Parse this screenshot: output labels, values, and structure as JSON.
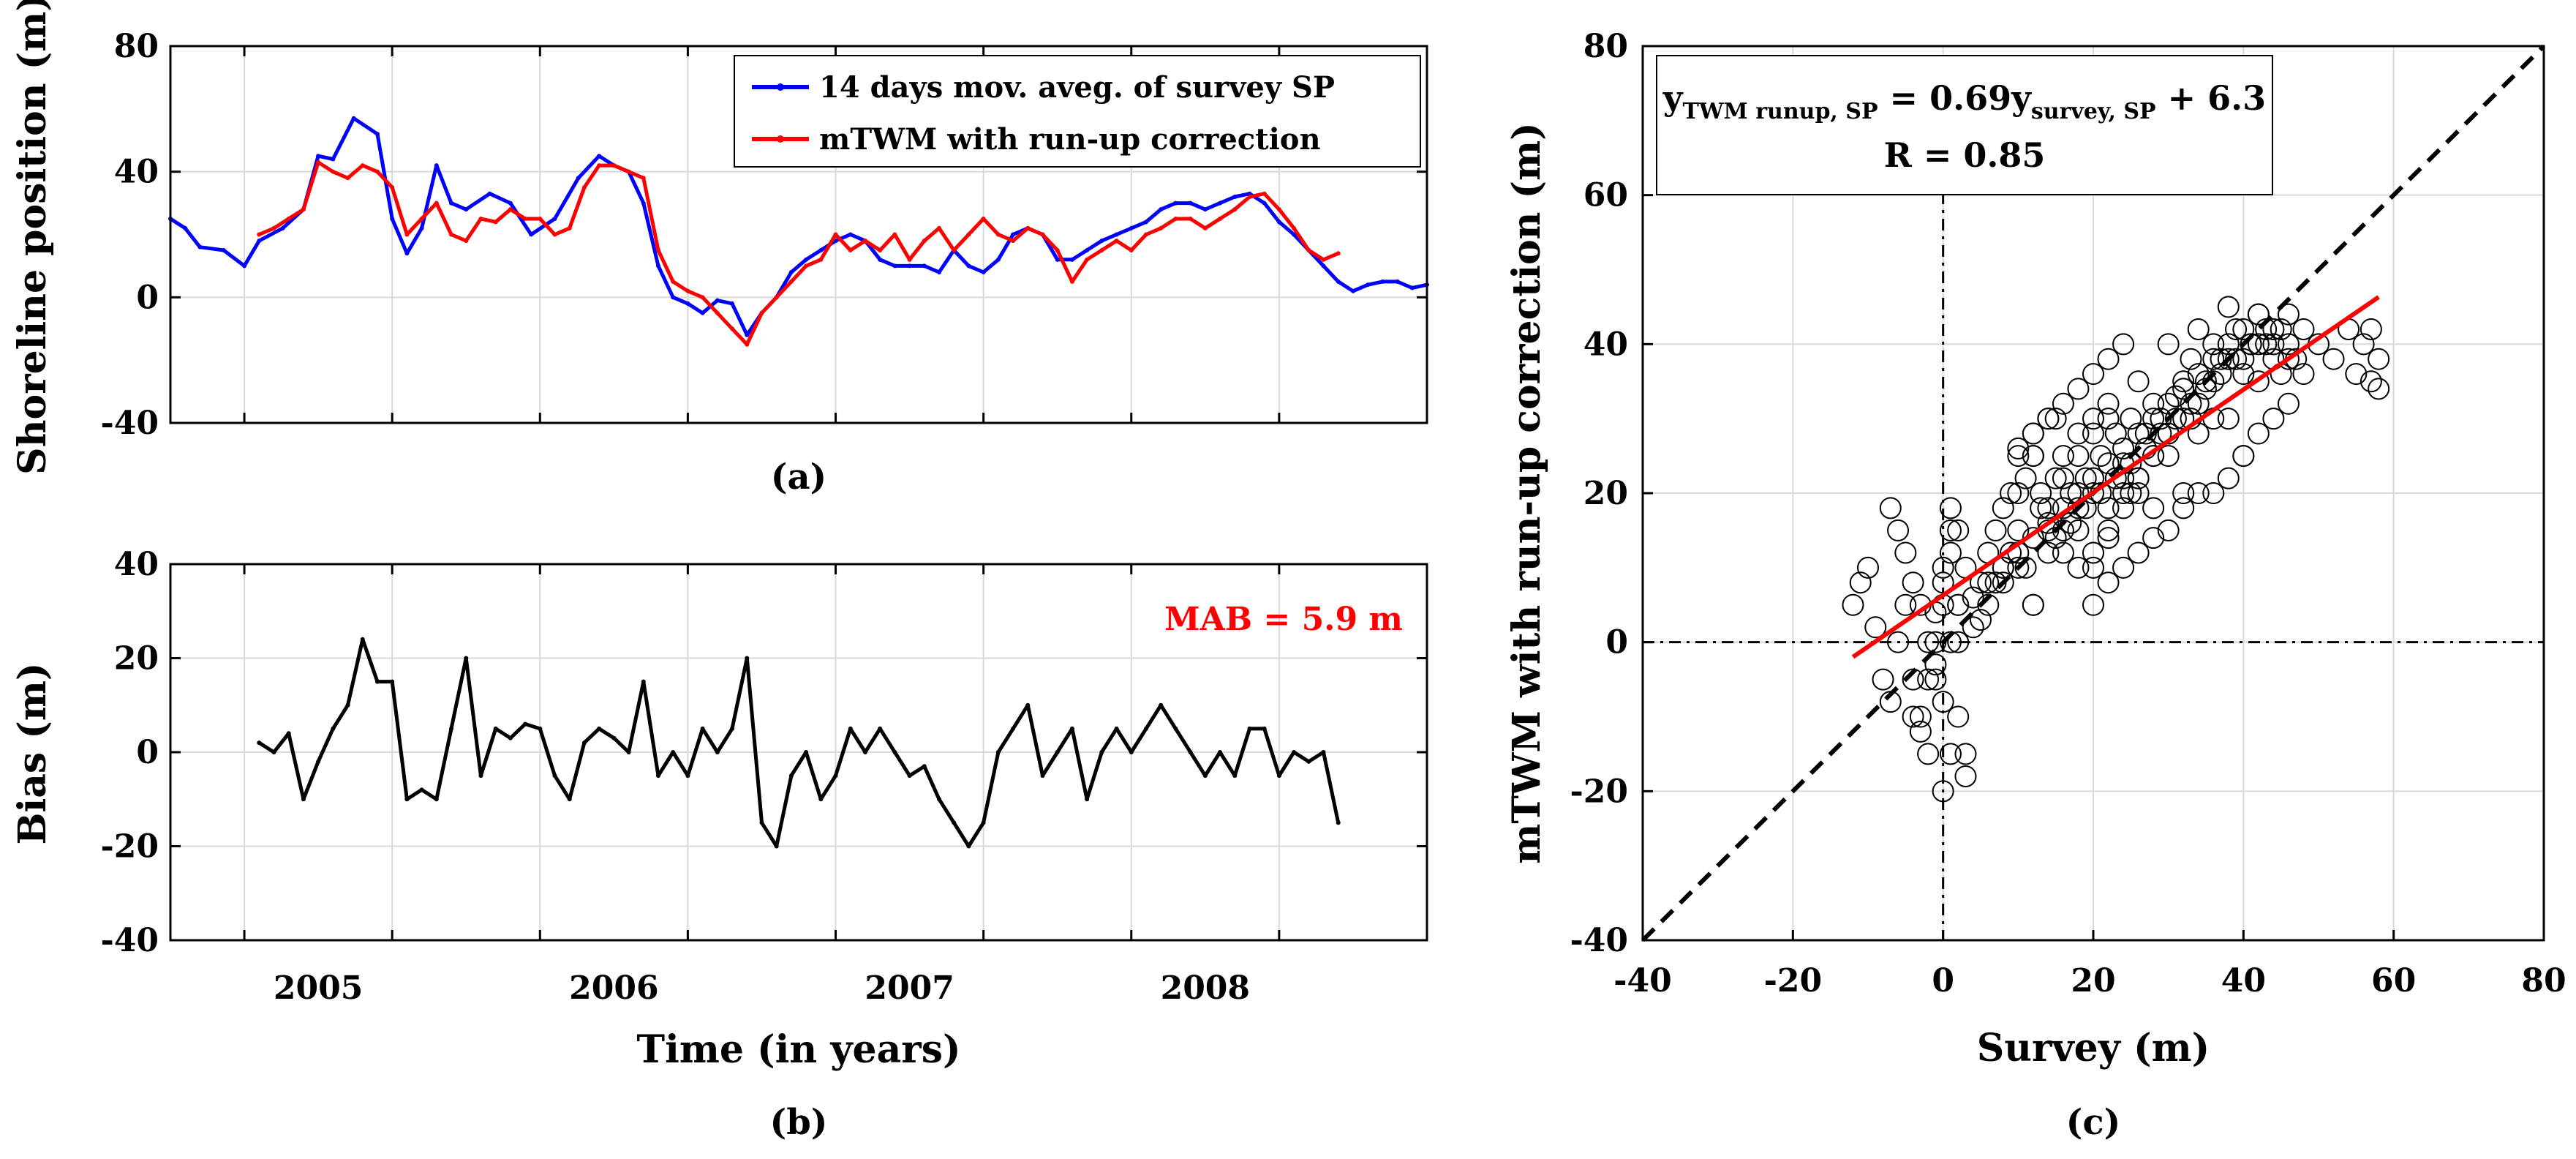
{
  "chart_data": [
    {
      "id": "a",
      "type": "line",
      "panel_label": "(a)",
      "ylabel": "Shoreline position (m)",
      "xlabel": "",
      "xlim": [
        2004.5,
        2008.75
      ],
      "ylim": [
        -40,
        80
      ],
      "yticks": [
        -40,
        0,
        40,
        80
      ],
      "xticks": [
        2005,
        2006,
        2007,
        2008
      ],
      "xgrid": [
        2004.75,
        2005.25,
        2005.75,
        2006.25,
        2006.75,
        2007.25,
        2007.75,
        2008.25
      ],
      "grid": true,
      "legend": {
        "position": "top-right",
        "entries": [
          "14 days mov. aveg. of survey SP",
          "mTWM with run-up correction"
        ]
      },
      "series": [
        {
          "name": "14 days mov. aveg. of survey SP",
          "color": "#0000ff",
          "x": [
            2004.5,
            2004.55,
            2004.6,
            2004.68,
            2004.75,
            2004.8,
            2004.88,
            2004.95,
            2005.0,
            2005.05,
            2005.12,
            2005.2,
            2005.25,
            2005.3,
            2005.35,
            2005.4,
            2005.45,
            2005.5,
            2005.58,
            2005.65,
            2005.72,
            2005.8,
            2005.88,
            2005.95,
            2006.0,
            2006.05,
            2006.1,
            2006.15,
            2006.2,
            2006.25,
            2006.3,
            2006.35,
            2006.4,
            2006.45,
            2006.5,
            2006.55,
            2006.6,
            2006.65,
            2006.7,
            2006.75,
            2006.8,
            2006.85,
            2006.9,
            2006.95,
            2007.0,
            2007.05,
            2007.1,
            2007.15,
            2007.2,
            2007.25,
            2007.3,
            2007.35,
            2007.4,
            2007.45,
            2007.5,
            2007.55,
            2007.6,
            2007.65,
            2007.7,
            2007.75,
            2007.8,
            2007.85,
            2007.9,
            2007.95,
            2008.0,
            2008.05,
            2008.1,
            2008.15,
            2008.2,
            2008.25,
            2008.3,
            2008.35,
            2008.4,
            2008.45,
            2008.5,
            2008.55,
            2008.6,
            2008.65,
            2008.7,
            2008.75
          ],
          "y": [
            25,
            22,
            16,
            15,
            10,
            18,
            22,
            28,
            45,
            44,
            57,
            52,
            25,
            14,
            22,
            42,
            30,
            28,
            33,
            30,
            20,
            25,
            38,
            45,
            42,
            40,
            30,
            10,
            0,
            -2,
            -5,
            -1,
            -2,
            -12,
            -5,
            0,
            8,
            12,
            15,
            18,
            20,
            18,
            12,
            10,
            10,
            10,
            8,
            15,
            10,
            8,
            12,
            20,
            22,
            20,
            12,
            12,
            15,
            18,
            20,
            22,
            24,
            28,
            30,
            30,
            28,
            30,
            32,
            33,
            30,
            24,
            20,
            15,
            10,
            5,
            2,
            4,
            5,
            5,
            3,
            4
          ]
        },
        {
          "name": "mTWM with run-up correction",
          "color": "#ff0000",
          "x": [
            2004.8,
            2004.85,
            2004.9,
            2004.95,
            2005.0,
            2005.05,
            2005.1,
            2005.15,
            2005.2,
            2005.25,
            2005.3,
            2005.35,
            2005.4,
            2005.45,
            2005.5,
            2005.55,
            2005.6,
            2005.65,
            2005.7,
            2005.75,
            2005.8,
            2005.85,
            2005.9,
            2005.95,
            2006.0,
            2006.05,
            2006.1,
            2006.15,
            2006.2,
            2006.25,
            2006.3,
            2006.35,
            2006.4,
            2006.45,
            2006.5,
            2006.55,
            2006.6,
            2006.65,
            2006.7,
            2006.75,
            2006.8,
            2006.85,
            2006.9,
            2006.95,
            2007.0,
            2007.05,
            2007.1,
            2007.15,
            2007.2,
            2007.25,
            2007.3,
            2007.35,
            2007.4,
            2007.45,
            2007.5,
            2007.55,
            2007.6,
            2007.65,
            2007.7,
            2007.75,
            2007.8,
            2007.85,
            2007.9,
            2007.95,
            2008.0,
            2008.05,
            2008.1,
            2008.15,
            2008.2,
            2008.25,
            2008.3,
            2008.35,
            2008.4,
            2008.45
          ],
          "y": [
            20,
            22,
            25,
            28,
            43,
            40,
            38,
            42,
            40,
            35,
            20,
            25,
            30,
            20,
            18,
            25,
            24,
            28,
            25,
            25,
            20,
            22,
            35,
            42,
            42,
            40,
            38,
            15,
            5,
            2,
            0,
            -5,
            -10,
            -15,
            -5,
            0,
            5,
            10,
            12,
            20,
            15,
            18,
            15,
            20,
            12,
            18,
            22,
            15,
            20,
            25,
            20,
            18,
            22,
            20,
            15,
            5,
            12,
            15,
            18,
            15,
            20,
            22,
            25,
            25,
            22,
            25,
            28,
            32,
            33,
            28,
            22,
            15,
            12,
            14
          ]
        }
      ]
    },
    {
      "id": "b",
      "type": "line",
      "panel_label": "(b)",
      "ylabel": "Bias (m)",
      "xlabel": "Time (in years)",
      "xlim": [
        2004.5,
        2008.75
      ],
      "ylim": [
        -40,
        40
      ],
      "yticks": [
        -40,
        -20,
        0,
        20,
        40
      ],
      "xticks": [
        2005,
        2006,
        2007,
        2008
      ],
      "xticklabels": [
        "2005",
        "2006",
        "2007",
        "2008"
      ],
      "xgrid": [
        2004.75,
        2005.25,
        2005.75,
        2006.25,
        2006.75,
        2007.25,
        2007.75,
        2008.25
      ],
      "grid": true,
      "annotation": {
        "text": "MAB = 5.9 m",
        "color": "#ff0000",
        "position": "top-right"
      },
      "series": [
        {
          "name": "Bias",
          "color": "#000000",
          "x": [
            2004.8,
            2004.85,
            2004.9,
            2004.95,
            2005.0,
            2005.05,
            2005.1,
            2005.15,
            2005.2,
            2005.25,
            2005.3,
            2005.35,
            2005.4,
            2005.45,
            2005.5,
            2005.55,
            2005.6,
            2005.65,
            2005.7,
            2005.75,
            2005.8,
            2005.85,
            2005.9,
            2005.95,
            2006.0,
            2006.05,
            2006.1,
            2006.15,
            2006.2,
            2006.25,
            2006.3,
            2006.35,
            2006.4,
            2006.45,
            2006.5,
            2006.55,
            2006.6,
            2006.65,
            2006.7,
            2006.75,
            2006.8,
            2006.85,
            2006.9,
            2006.95,
            2007.0,
            2007.05,
            2007.1,
            2007.15,
            2007.2,
            2007.25,
            2007.3,
            2007.35,
            2007.4,
            2007.45,
            2007.5,
            2007.55,
            2007.6,
            2007.65,
            2007.7,
            2007.75,
            2007.8,
            2007.85,
            2007.9,
            2007.95,
            2008.0,
            2008.05,
            2008.1,
            2008.15,
            2008.2,
            2008.25,
            2008.3,
            2008.35,
            2008.4,
            2008.45
          ],
          "y": [
            2,
            0,
            4,
            -10,
            -2,
            5,
            10,
            24,
            15,
            15,
            -10,
            -8,
            -10,
            5,
            20,
            -5,
            5,
            3,
            6,
            5,
            -5,
            -10,
            2,
            5,
            3,
            0,
            15,
            -5,
            0,
            -5,
            5,
            0,
            5,
            20,
            -15,
            -20,
            -5,
            0,
            -10,
            -5,
            5,
            0,
            5,
            0,
            -5,
            -3,
            -10,
            -15,
            -20,
            -15,
            0,
            5,
            10,
            -5,
            0,
            5,
            -10,
            0,
            5,
            0,
            5,
            10,
            5,
            0,
            -5,
            0,
            -5,
            5,
            5,
            -5,
            0,
            -2,
            0,
            -15
          ]
        }
      ]
    },
    {
      "id": "c",
      "type": "scatter",
      "panel_label": "(c)",
      "xlabel": "Survey (m)",
      "ylabel": "mTWM with run-up correction (m)",
      "xlim": [
        -40,
        80
      ],
      "ylim": [
        -40,
        80
      ],
      "xticks": [
        -40,
        -20,
        0,
        20,
        40,
        60,
        80
      ],
      "yticks": [
        -40,
        -20,
        0,
        20,
        40,
        60,
        80
      ],
      "grid": true,
      "equation": {
        "lhs": "y",
        "lhs_sub": "TWM runup, SP",
        "eq": " = 0.69",
        "rhs": "y",
        "rhs_sub": "survey, SP",
        "const": " + 6.3",
        "r_text": "R = 0.85"
      },
      "fit": {
        "slope": 0.69,
        "intercept": 6.3,
        "x_range": [
          -12,
          58
        ],
        "color": "#ff0000"
      },
      "one_to_one": {
        "x_range": [
          -40,
          80
        ],
        "color": "#000000",
        "style": "dashed"
      },
      "points": {
        "x": [
          -12,
          -11,
          -10,
          -9,
          -8,
          -7,
          -6,
          -5,
          -4,
          -3,
          -2,
          -1,
          0,
          0,
          1,
          1,
          2,
          2,
          3,
          3,
          -2,
          -3,
          -4,
          -1,
          0,
          1,
          2,
          4,
          5,
          6,
          7,
          8,
          9,
          10,
          11,
          12,
          12,
          13,
          14,
          15,
          15,
          16,
          17,
          18,
          18,
          19,
          20,
          20,
          21,
          22,
          22,
          23,
          24,
          25,
          25,
          26,
          27,
          28,
          28,
          29,
          30,
          30,
          31,
          32,
          33,
          33,
          34,
          35,
          36,
          37,
          38,
          38,
          39,
          40,
          40,
          41,
          42,
          42,
          43,
          44,
          45,
          45,
          46,
          47,
          48,
          50,
          52,
          54,
          56,
          57,
          58,
          58,
          57,
          55,
          8,
          10,
          12,
          14,
          16,
          18,
          20,
          22,
          24,
          26,
          28,
          30,
          32,
          34,
          36,
          10,
          12,
          14,
          16,
          18,
          20,
          22,
          24,
          26,
          15,
          17,
          19,
          21,
          23,
          25,
          27,
          29,
          31,
          33,
          35,
          37,
          39,
          41,
          43,
          5,
          6,
          7,
          8,
          9,
          10,
          11,
          12,
          13,
          14,
          16,
          18,
          20,
          22,
          24,
          26,
          28,
          30,
          32,
          34,
          36,
          38,
          40,
          42,
          44,
          46,
          -5,
          -6,
          -7,
          -4,
          -3,
          -2,
          -1,
          0,
          1,
          2,
          3,
          2,
          1,
          0,
          -1,
          4,
          6,
          8,
          10,
          12,
          14,
          16,
          18,
          20,
          22,
          24,
          26,
          28,
          30,
          32,
          34,
          36,
          38,
          40,
          42,
          44,
          46,
          48,
          36,
          38,
          40,
          42,
          44,
          46,
          30,
          32,
          34,
          20,
          22,
          24,
          26,
          28,
          10,
          12,
          14,
          16,
          18,
          20,
          22,
          24
        ],
        "y": [
          5,
          8,
          10,
          2,
          -5,
          -8,
          0,
          5,
          -10,
          -12,
          -5,
          0,
          5,
          10,
          15,
          18,
          5,
          0,
          -15,
          -18,
          -15,
          -10,
          -5,
          -3,
          -20,
          -15,
          -10,
          2,
          8,
          12,
          15,
          18,
          20,
          15,
          10,
          5,
          25,
          20,
          18,
          22,
          30,
          25,
          20,
          15,
          28,
          22,
          30,
          20,
          25,
          32,
          18,
          28,
          22,
          30,
          20,
          35,
          28,
          25,
          32,
          30,
          40,
          28,
          33,
          35,
          38,
          30,
          42,
          35,
          40,
          38,
          45,
          30,
          42,
          38,
          25,
          40,
          35,
          44,
          40,
          38,
          42,
          36,
          40,
          38,
          42,
          40,
          38,
          42,
          40,
          35,
          34,
          38,
          42,
          36,
          8,
          10,
          5,
          12,
          15,
          18,
          10,
          14,
          20,
          22,
          18,
          25,
          20,
          28,
          30,
          25,
          28,
          30,
          22,
          25,
          28,
          30,
          24,
          20,
          14,
          16,
          18,
          20,
          22,
          24,
          26,
          28,
          30,
          32,
          34,
          36,
          38,
          40,
          42,
          3,
          5,
          8,
          10,
          12,
          20,
          22,
          25,
          18,
          15,
          12,
          10,
          12,
          15,
          18,
          22,
          25,
          28,
          30,
          32,
          35,
          38,
          36,
          40,
          42,
          44,
          12,
          15,
          18,
          8,
          5,
          0,
          -5,
          -8,
          0,
          5,
          10,
          15,
          12,
          8,
          4,
          6,
          8,
          10,
          12,
          14,
          16,
          18,
          20,
          22,
          24,
          26,
          28,
          30,
          32,
          34,
          36,
          38,
          40,
          42,
          44,
          40,
          38,
          36,
          20,
          22,
          25,
          28,
          30,
          32,
          15,
          18,
          20,
          5,
          8,
          10,
          12,
          14,
          26,
          28,
          30,
          32,
          34,
          36,
          38,
          40
        ]
      }
    }
  ]
}
